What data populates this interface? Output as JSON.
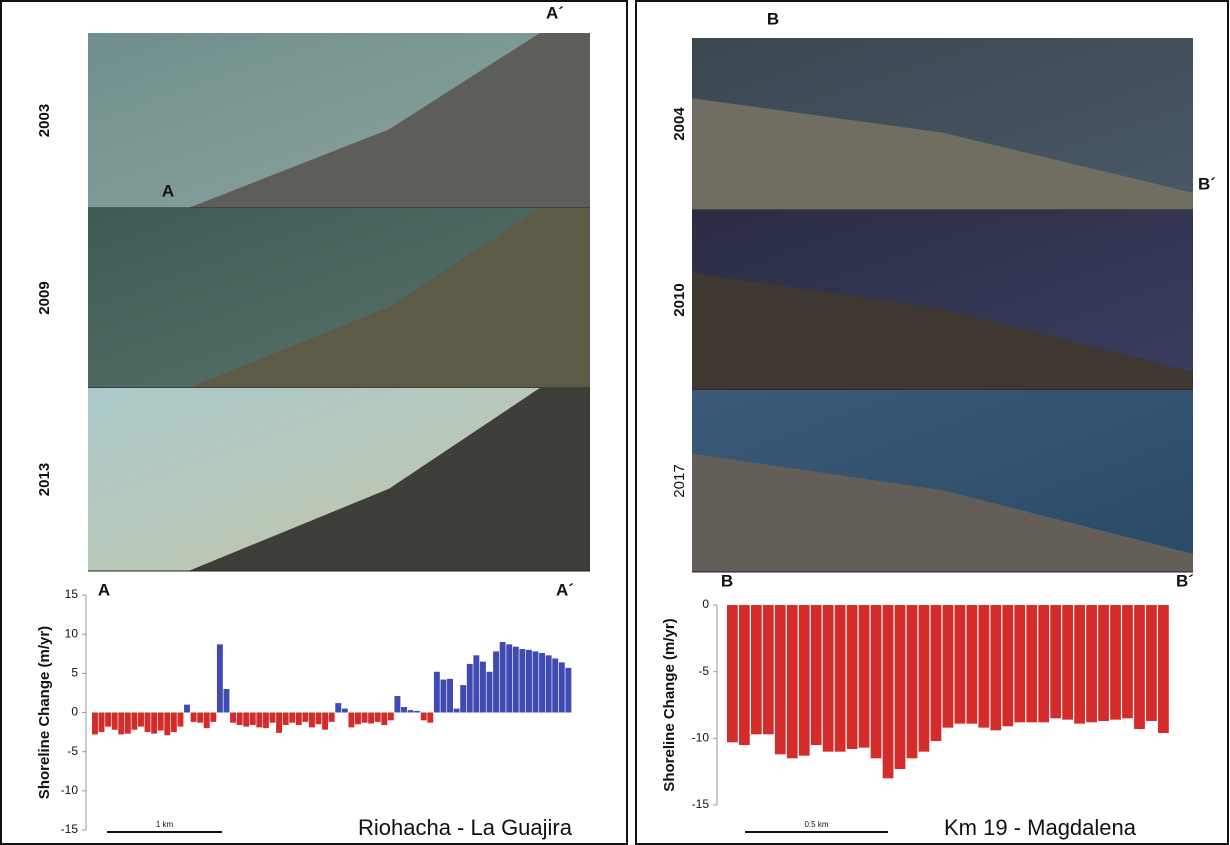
{
  "chart_data": [
    {
      "type": "bar",
      "title": "Riohacha - La Guajira",
      "ylabel": "Shoreline Change (m/yr)",
      "year_labels": [
        "2003",
        "2009",
        "2013"
      ],
      "profile_start": "A",
      "profile_end": "A´",
      "scale_label": "1 km",
      "values": [
        -2.8,
        -2.5,
        -1.8,
        -2.2,
        -2.8,
        -2.7,
        -2.2,
        -1.8,
        -2.5,
        -2.7,
        -2.3,
        -2.9,
        -2.5,
        -1.8,
        1.0,
        -1.2,
        -1.3,
        -2.0,
        -1.2,
        8.7,
        3.0,
        -1.3,
        -1.6,
        -1.8,
        -1.6,
        -1.9,
        -2.0,
        -1.3,
        -2.6,
        -1.6,
        -1.3,
        -1.6,
        -1.2,
        -1.9,
        -1.5,
        -2.2,
        -1.2,
        1.2,
        0.5,
        -1.9,
        -1.5,
        -1.3,
        -1.4,
        -1.2,
        -1.6,
        -1.0,
        2.1,
        0.7,
        0.3,
        0.2,
        -1.0,
        -1.3,
        5.2,
        4.2,
        4.3,
        0.5,
        3.5,
        6.2,
        7.3,
        6.5,
        5.2,
        7.8,
        9.0,
        8.7,
        8.4,
        8.1,
        8.0,
        7.8,
        7.6,
        7.3,
        6.9,
        6.4,
        5.7
      ],
      "positive_color": "#3f4bb0",
      "negative_color": "#d42b2b",
      "ylim": [
        -15,
        15
      ],
      "yticks": [
        15,
        10,
        5,
        0,
        -5,
        -10,
        -15
      ]
    },
    {
      "type": "bar",
      "title": "Km 19 - Magdalena",
      "ylabel": "Shoreline Change (m/yr)",
      "year_labels": [
        "2004",
        "2010",
        "2017"
      ],
      "profile_start": "B",
      "profile_end": "B´",
      "scale_label": "0.5 km",
      "values": [
        -10.3,
        -10.5,
        -9.7,
        -9.7,
        -11.2,
        -11.5,
        -11.3,
        -10.5,
        -11.0,
        -11.0,
        -10.8,
        -10.7,
        -11.5,
        -13.0,
        -12.3,
        -11.5,
        -11.0,
        -10.2,
        -9.2,
        -8.9,
        -8.9,
        -9.2,
        -9.4,
        -9.1,
        -8.8,
        -8.8,
        -8.8,
        -8.5,
        -8.6,
        -8.9,
        -8.8,
        -8.7,
        -8.6,
        -8.5,
        -9.3,
        -8.7,
        -9.6
      ],
      "positive_color": "#3f4bb0",
      "negative_color": "#d42b2b",
      "ylim": [
        -15,
        0
      ],
      "yticks": [
        0,
        -5,
        -10,
        -15
      ]
    }
  ]
}
